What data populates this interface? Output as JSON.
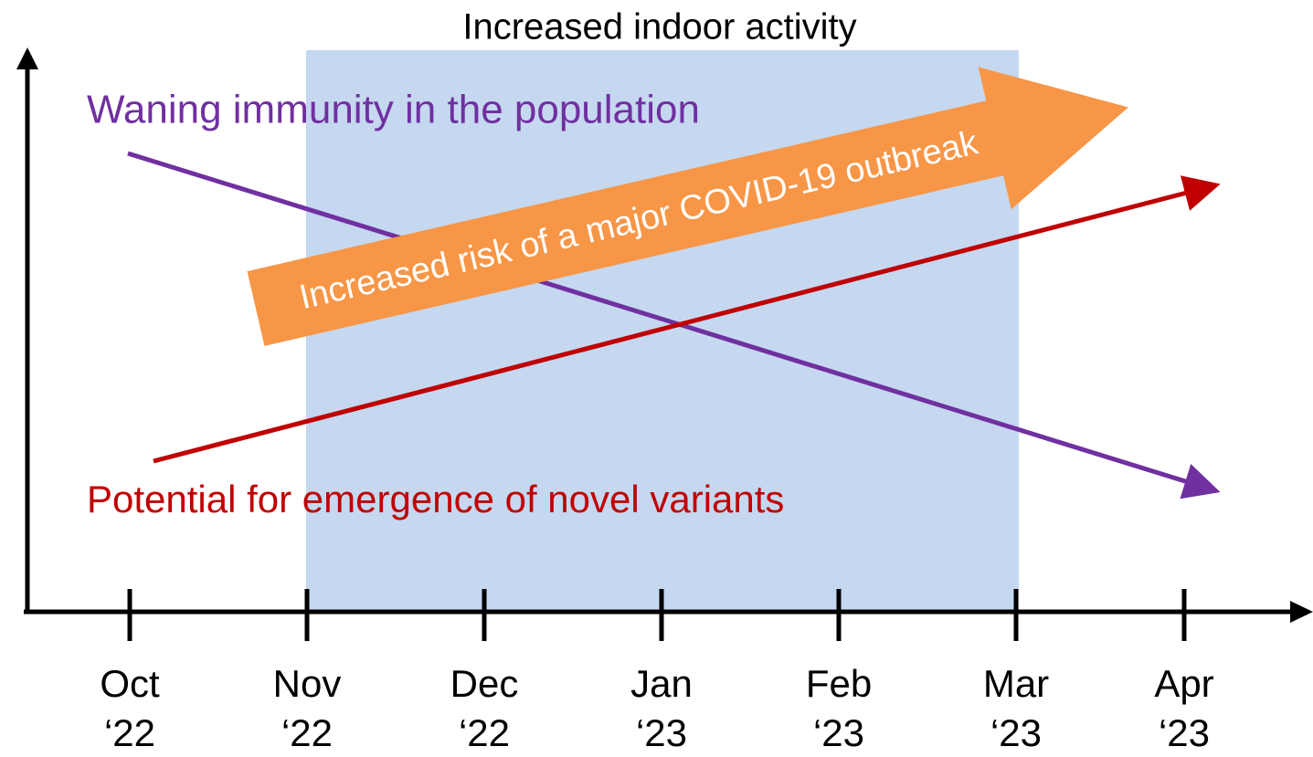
{
  "title": "Increased indoor activity",
  "labels": {
    "immunity": "Waning immunity in the population",
    "variants": "Potential for emergence of novel variants",
    "risk": "Increased risk of a major COVID-19 outbreak"
  },
  "months": [
    {
      "month": "Oct",
      "year": "‘22"
    },
    {
      "month": "Nov",
      "year": "‘22"
    },
    {
      "month": "Dec",
      "year": "‘22"
    },
    {
      "month": "Jan",
      "year": "‘23"
    },
    {
      "month": "Feb",
      "year": "‘23"
    },
    {
      "month": "Mar",
      "year": "‘23"
    },
    {
      "month": "Apr",
      "year": "‘23"
    }
  ]
}
